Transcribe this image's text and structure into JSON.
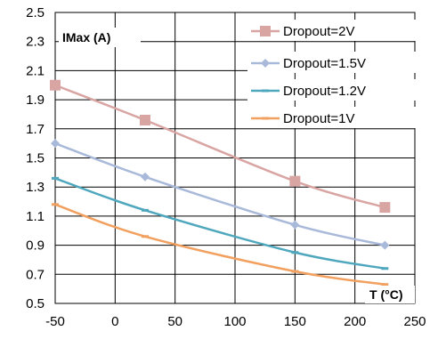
{
  "chart_data": {
    "type": "line",
    "title": "",
    "ylabel": "IMax (A)",
    "xlabel": "T (°C)",
    "xlim": [
      -50,
      250
    ],
    "ylim": [
      0.5,
      2.5
    ],
    "x_ticks": [
      -50,
      0,
      50,
      100,
      150,
      200,
      250
    ],
    "y_ticks": [
      0.5,
      0.7,
      0.9,
      1.1,
      1.3,
      1.5,
      1.7,
      1.9,
      2.1,
      2.3,
      2.5
    ],
    "y_tick_labels": [
      "0.5",
      "0.7",
      "0.9",
      "1.1",
      "1.3",
      "1.5",
      "1.7",
      "1.9",
      "2.1",
      "2.3",
      "2.5"
    ],
    "grid": {
      "x": true,
      "y": true
    },
    "legend_position": "top-right",
    "series": [
      {
        "name": "Dropout=2V",
        "color": "#D9A5A3",
        "marker": "square",
        "x": [
          -50,
          25,
          150,
          225
        ],
        "values": [
          2.0,
          1.76,
          1.34,
          1.16
        ]
      },
      {
        "name": "Dropout=1.5V",
        "color": "#A9B9DA",
        "marker": "diamond",
        "x": [
          -50,
          25,
          150,
          225
        ],
        "values": [
          1.6,
          1.37,
          1.04,
          0.9
        ]
      },
      {
        "name": "Dropout=1.2V",
        "color": "#4FA7BE",
        "marker": "dash",
        "x": [
          -50,
          25,
          150,
          225
        ],
        "values": [
          1.36,
          1.14,
          0.85,
          0.74
        ]
      },
      {
        "name": "Dropout=1V",
        "color": "#F2A05F",
        "marker": "dash",
        "x": [
          -50,
          25,
          150,
          225
        ],
        "values": [
          1.18,
          0.96,
          0.72,
          0.63
        ]
      }
    ]
  }
}
